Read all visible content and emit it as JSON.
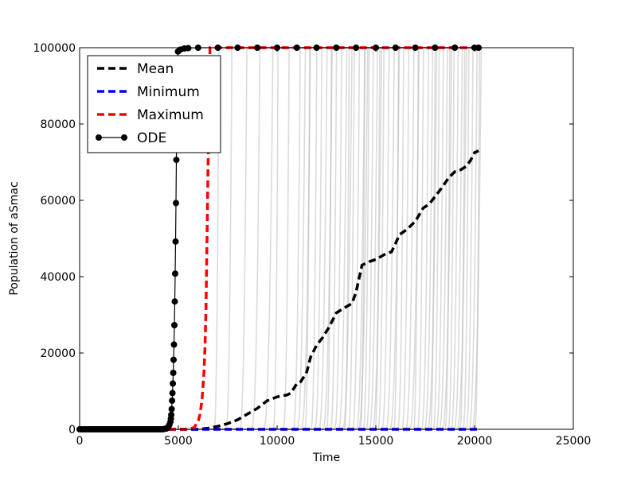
{
  "chart_data": {
    "type": "line",
    "title": "",
    "xlabel": "Time",
    "ylabel": "Population of aSmac",
    "xlim": [
      0,
      25000
    ],
    "ylim": [
      0,
      100000
    ],
    "x_ticks": [
      0,
      5000,
      10000,
      15000,
      20000,
      25000
    ],
    "x_tick_labels": [
      "0",
      "5000",
      "10000",
      "15000",
      "20000",
      "25000"
    ],
    "y_ticks": [
      0,
      20000,
      40000,
      60000,
      80000,
      100000
    ],
    "y_tick_labels": [
      "0",
      "20000",
      "40000",
      "60000",
      "80000",
      "100000"
    ],
    "grid": false,
    "legend_position": "top-left",
    "legend": [
      {
        "label": "Mean",
        "color": "#000000",
        "style": "dashed"
      },
      {
        "label": "Minimum",
        "color": "#0000ff",
        "style": "dashed"
      },
      {
        "label": "Maximum",
        "color": "#ff0000",
        "style": "dashed"
      },
      {
        "label": "ODE",
        "color": "#000000",
        "style": "solid-marker"
      }
    ],
    "series": [
      {
        "name": "Mean",
        "color": "#000000",
        "style": "dashed",
        "x": [
          0,
          6000,
          6500,
          7000,
          7500,
          8000,
          8500,
          9000,
          9500,
          10000,
          10500,
          10700,
          11000,
          11200,
          11500,
          11700,
          12000,
          12300,
          12600,
          13000,
          13300,
          13800,
          14000,
          14300,
          14700,
          15000,
          15500,
          15800,
          16200,
          16600,
          17000,
          17400,
          17700,
          18000,
          18300,
          18700,
          19000,
          19300,
          19600,
          19800,
          20000,
          20200
        ],
        "y": [
          0,
          0,
          300,
          800,
          1500,
          2500,
          4000,
          5500,
          7500,
          8500,
          9000,
          9500,
          12000,
          12500,
          15000,
          19000,
          22000,
          24000,
          26500,
          30500,
          31500,
          33000,
          36000,
          43000,
          44000,
          44500,
          46000,
          46500,
          51000,
          52500,
          54500,
          58000,
          59000,
          61000,
          63000,
          66000,
          67500,
          68000,
          69000,
          70500,
          72500,
          73000
        ]
      },
      {
        "name": "Minimum",
        "color": "#0000ff",
        "style": "dashed",
        "x": [
          0,
          20200
        ],
        "y": [
          0,
          0
        ]
      },
      {
        "name": "Maximum",
        "color": "#ff0000",
        "style": "dashed",
        "x": [
          0,
          5500,
          5800,
          6000,
          6100,
          6200,
          6300,
          6350,
          6400,
          6450,
          6500,
          6550,
          6600,
          6700,
          20200
        ],
        "y": [
          0,
          0,
          500,
          2000,
          4000,
          8000,
          15000,
          22000,
          32000,
          50000,
          68000,
          82000,
          100000,
          100000,
          100000
        ]
      },
      {
        "name": "ODE",
        "color": "#000000",
        "style": "solid-marker",
        "x": [
          0,
          100,
          200,
          300,
          400,
          500,
          600,
          700,
          800,
          900,
          1000,
          1100,
          1200,
          1300,
          1400,
          1500,
          1600,
          1700,
          1800,
          1900,
          2000,
          2100,
          2200,
          2300,
          2400,
          2500,
          2600,
          2700,
          2800,
          2900,
          3000,
          3100,
          3200,
          3300,
          3400,
          3500,
          3600,
          3700,
          3800,
          3900,
          4000,
          4100,
          4200,
          4300,
          4400,
          4450,
          4500,
          4550,
          4600,
          4620,
          4640,
          4660,
          4680,
          4700,
          4720,
          4740,
          4760,
          4780,
          4800,
          4820,
          4840,
          4860,
          4880,
          4900,
          4920,
          4940,
          4960,
          4980,
          5100,
          5300,
          5500,
          6000,
          7000,
          8000,
          9000,
          10000,
          11000,
          12000,
          13000,
          14000,
          15000,
          16000,
          17000,
          18000,
          19000,
          20000,
          20200
        ],
        "y": [
          0,
          0,
          0,
          0,
          0,
          0,
          0,
          0,
          0,
          0,
          0,
          0,
          0,
          0,
          0,
          0,
          0,
          0,
          0,
          0,
          0,
          0,
          0,
          0,
          0,
          0,
          0,
          0,
          0,
          0,
          0,
          0,
          0,
          0,
          0,
          0,
          0,
          0,
          0,
          0,
          0,
          0,
          0,
          100,
          200,
          400,
          700,
          1200,
          2000,
          2800,
          3800,
          5300,
          7500,
          9500,
          12000,
          14800,
          18200,
          22200,
          27300,
          33500,
          40800,
          49200,
          59300,
          70600,
          80000,
          88000,
          95000,
          99000,
          99500,
          99800,
          99900,
          100000,
          100000,
          100000,
          100000,
          100000,
          100000,
          100000,
          100000,
          100000,
          100000,
          100000,
          100000,
          100000,
          100000,
          100000,
          100000
        ]
      }
    ],
    "background_trajectories": {
      "color": "#b0b0b0",
      "count": 100,
      "onsets": [
        6800,
        7400,
        8100,
        8700,
        9300,
        9800,
        10300,
        10800,
        11000,
        11200,
        11400,
        11700,
        11900,
        12100,
        12300,
        12500,
        12700,
        12900,
        13100,
        13300,
        13400,
        13600,
        13800,
        14000,
        14100,
        14200,
        14350,
        14500,
        14650,
        14800,
        14950,
        15100,
        15300,
        15500,
        15700,
        15900,
        16100,
        16300,
        16500,
        16700,
        16900,
        17100,
        17300,
        17450,
        17600,
        17750,
        17900,
        18050,
        18200,
        18350,
        18500,
        18650,
        18800,
        18950,
        19100,
        19250,
        19400,
        19550,
        19700,
        19850,
        20000
      ]
    }
  }
}
